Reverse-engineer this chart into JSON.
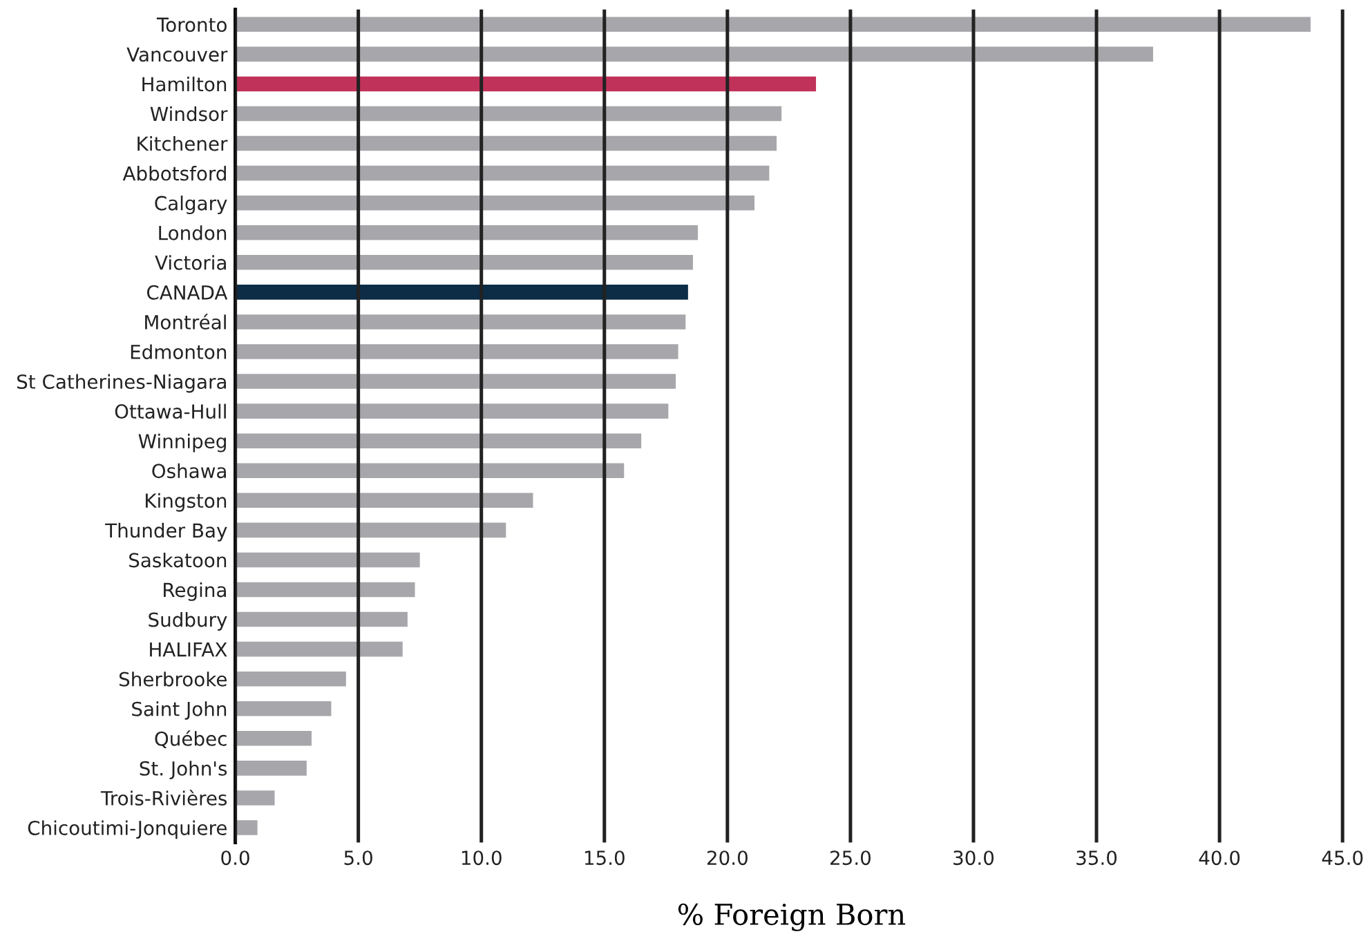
{
  "chart_data": {
    "type": "bar",
    "orientation": "horizontal",
    "xlabel": "% Foreign Born",
    "categories": [
      "Toronto",
      "Vancouver",
      "Hamilton",
      "Windsor",
      "Kitchener",
      "Abbotsford",
      "Calgary",
      "London",
      "Victoria",
      "CANADA",
      "Montréal",
      "Edmonton",
      "St Catherines-Niagara",
      "Ottawa-Hull",
      "Winnipeg",
      "Oshawa",
      "Kingston",
      "Thunder Bay",
      "Saskatoon",
      "Regina",
      "Sudbury",
      "HALIFAX",
      "Sherbrooke",
      "Saint John",
      "Québec",
      "St. John's",
      "Trois-Rivières",
      "Chicoutimi-Jonquiere"
    ],
    "values": [
      43.7,
      37.3,
      23.6,
      22.2,
      22.0,
      21.7,
      21.1,
      18.8,
      18.6,
      18.4,
      18.3,
      18.0,
      17.9,
      17.6,
      16.5,
      15.8,
      12.1,
      11.0,
      7.5,
      7.3,
      7.0,
      6.8,
      4.5,
      3.9,
      3.1,
      2.9,
      1.6,
      0.9
    ],
    "colors": [
      "#a7a7ab",
      "#a7a7ab",
      "#c0325a",
      "#a7a7ab",
      "#a7a7ab",
      "#a7a7ab",
      "#a7a7ab",
      "#a7a7ab",
      "#a7a7ab",
      "#0d2c45",
      "#a7a7ab",
      "#a7a7ab",
      "#a7a7ab",
      "#a7a7ab",
      "#a7a7ab",
      "#a7a7ab",
      "#a7a7ab",
      "#a7a7ab",
      "#a7a7ab",
      "#a7a7ab",
      "#a7a7ab",
      "#a7a7ab",
      "#a7a7ab",
      "#a7a7ab",
      "#a7a7ab",
      "#a7a7ab",
      "#a7a7ab",
      "#a7a7ab"
    ],
    "xlim": [
      0,
      45.2
    ],
    "xticks": [
      {
        "value": 0,
        "label": "0.0"
      },
      {
        "value": 5,
        "label": "5.0"
      },
      {
        "value": 10,
        "label": "10.0"
      },
      {
        "value": 15,
        "label": "15.0"
      },
      {
        "value": 20,
        "label": "20.0"
      },
      {
        "value": 25,
        "label": "25.0"
      },
      {
        "value": 30,
        "label": "30.0"
      },
      {
        "value": 35,
        "label": "35.0"
      },
      {
        "value": 40,
        "label": "40.0"
      },
      {
        "value": 45,
        "label": "45.0"
      }
    ],
    "grid": "x",
    "legend": false
  }
}
